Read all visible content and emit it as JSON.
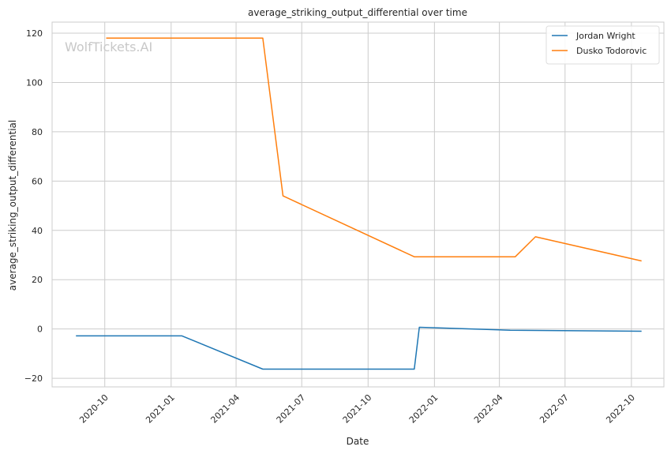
{
  "chart_data": {
    "type": "line",
    "title": "average_striking_output_differential over time",
    "xlabel": "Date",
    "ylabel": "average_striking_output_differential",
    "watermark": "WolfTickets.AI",
    "x_type": "date",
    "xlim": [
      "2020-07-20",
      "2022-11-15"
    ],
    "ylim": [
      -23.5,
      124.5
    ],
    "x_ticks": [
      "2020-10-01",
      "2021-01-01",
      "2021-04-01",
      "2021-07-01",
      "2021-10-01",
      "2022-01-01",
      "2022-04-01",
      "2022-07-01",
      "2022-10-01"
    ],
    "x_tick_labels": [
      "2020-10",
      "2021-01",
      "2021-04",
      "2021-07",
      "2021-10",
      "2022-01",
      "2022-04",
      "2022-07",
      "2022-10"
    ],
    "y_ticks": [
      -20,
      0,
      20,
      40,
      60,
      80,
      100,
      120
    ],
    "y_tick_labels": [
      "−20",
      "0",
      "20",
      "40",
      "60",
      "80",
      "100",
      "120"
    ],
    "grid": true,
    "legend_position": "top-right",
    "series": [
      {
        "name": "Jordan Wright",
        "color": "#1f77b4",
        "points": [
          {
            "x": "2020-08-22",
            "y": -2.8
          },
          {
            "x": "2021-01-16",
            "y": -2.8
          },
          {
            "x": "2021-05-08",
            "y": -16.3
          },
          {
            "x": "2021-12-04",
            "y": -16.3
          },
          {
            "x": "2021-12-11",
            "y": 0.7
          },
          {
            "x": "2022-04-16",
            "y": -0.5
          },
          {
            "x": "2022-10-15",
            "y": -0.9
          }
        ]
      },
      {
        "name": "Dusko Todorovic",
        "color": "#ff7f0e",
        "points": [
          {
            "x": "2020-10-03",
            "y": 118
          },
          {
            "x": "2021-05-08",
            "y": 118
          },
          {
            "x": "2021-06-05",
            "y": 54
          },
          {
            "x": "2021-12-04",
            "y": 29.3
          },
          {
            "x": "2022-04-23",
            "y": 29.3
          },
          {
            "x": "2022-05-21",
            "y": 37.4
          },
          {
            "x": "2022-10-15",
            "y": 27.6
          }
        ]
      }
    ]
  }
}
